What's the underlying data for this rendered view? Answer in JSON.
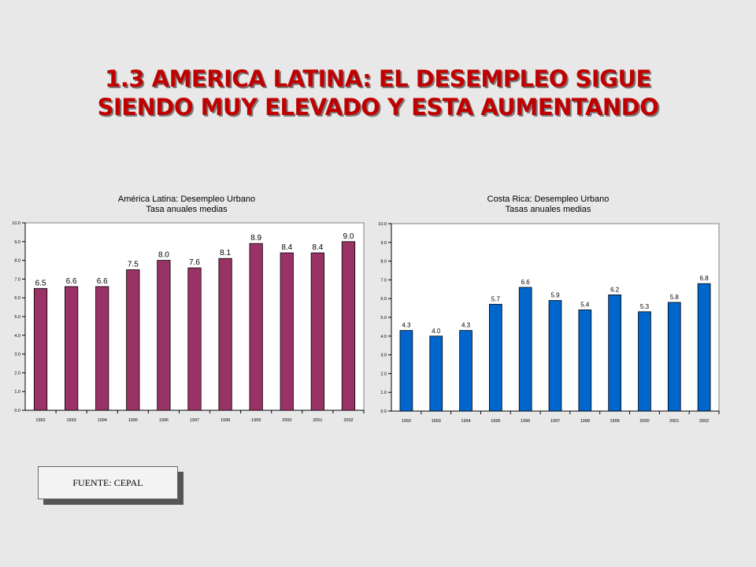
{
  "title": {
    "line1": "1.3 AMERICA LATINA:  EL DESEMPLEO SIGUE",
    "line2": "SIENDO MUY ELEVADO Y ESTA AUMENTANDO"
  },
  "source": "FUENTE: CEPAL",
  "chart_data": [
    {
      "type": "bar",
      "title": "América Latina: Desempleo Urbano",
      "subtitle": "Tasa anuales medias",
      "categories": [
        "1992",
        "1993",
        "1994",
        "1995",
        "1996",
        "1997",
        "1998",
        "1999",
        "2000",
        "2001",
        "2002"
      ],
      "values": [
        6.5,
        6.6,
        6.6,
        7.5,
        8.0,
        7.6,
        8.1,
        8.9,
        8.4,
        8.4,
        9.0
      ],
      "data_labels": [
        "6.5",
        "6.6",
        "6.6",
        "7.5",
        "8.0",
        "7.6",
        "8.1",
        "8.9",
        "8.4",
        "8.4",
        "9.0"
      ],
      "yticks": [
        "0.0",
        "1.0",
        "2.0",
        "3.0",
        "4.0",
        "5.0",
        "6.0",
        "7.0",
        "8.0",
        "9.0",
        "10.0"
      ],
      "ylim": [
        0,
        10
      ],
      "bar_color": "#993366",
      "grid": false
    },
    {
      "type": "bar",
      "title": "Costa Rica: Desempleo Urbano",
      "subtitle": "Tasas anuales medias",
      "categories": [
        "1992",
        "1993",
        "1994",
        "1995",
        "1996",
        "1997",
        "1998",
        "1999",
        "2000",
        "2001",
        "2002"
      ],
      "values": [
        4.3,
        4.0,
        4.3,
        5.7,
        6.6,
        5.9,
        5.4,
        6.2,
        5.3,
        5.8,
        6.8
      ],
      "data_labels": [
        "4.3",
        "4.0",
        "4.3",
        "5.7",
        "6.6",
        "5.9",
        "5.4",
        "6.2",
        "5.3",
        "5.8",
        "6.8"
      ],
      "yticks": [
        "0.0",
        "1.0",
        "2.0",
        "3.0",
        "4.0",
        "5.0",
        "6.0",
        "7.0",
        "8.0",
        "9.0",
        "10.0"
      ],
      "ylim": [
        0,
        10
      ],
      "bar_color": "#0066cc",
      "grid": false
    }
  ]
}
